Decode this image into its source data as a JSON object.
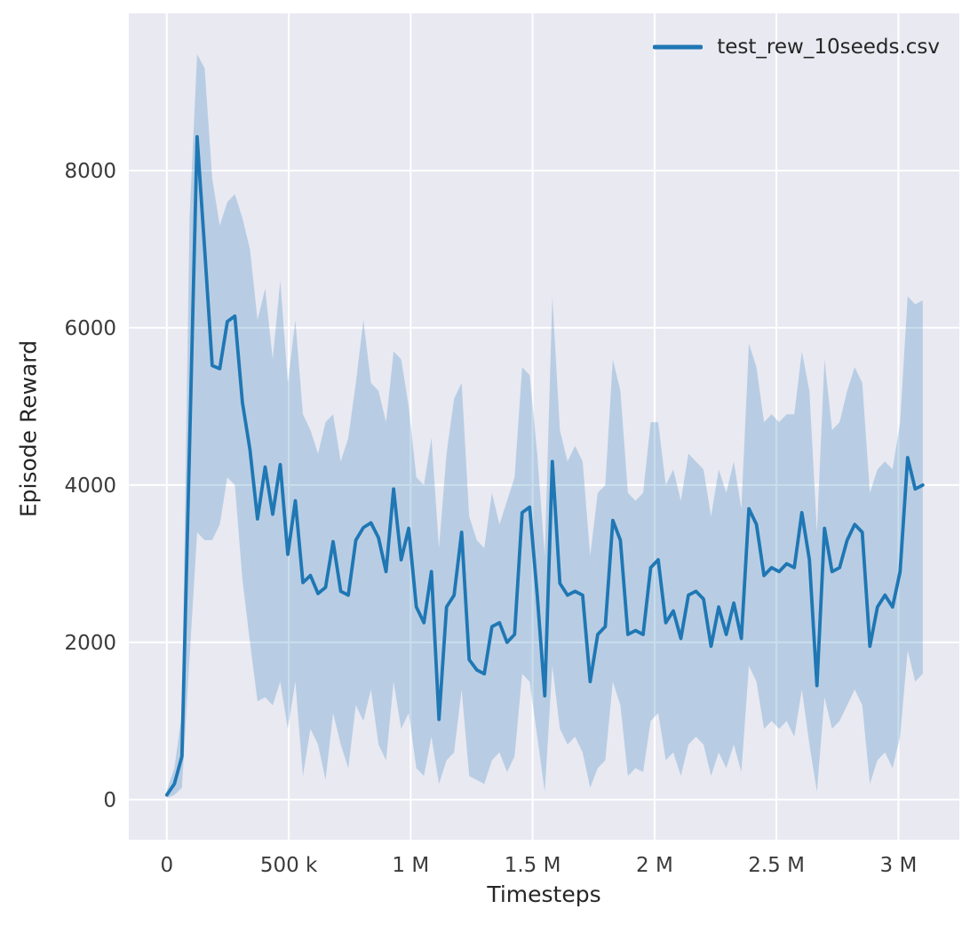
{
  "figure": {
    "background": "#ffffff",
    "plot_background": "#e9e9f2",
    "grid_color": "#ffffff",
    "tick_color": "#3b3b3b",
    "label_color": "#262626"
  },
  "legend": {
    "label": "test_rew_10seeds.csv",
    "line_color": "#1f77b4"
  },
  "chart_data": {
    "type": "line",
    "title": "",
    "xlabel": "Timesteps",
    "ylabel": "Episode Reward",
    "legend_position": "upper right",
    "grid": true,
    "series_name": "test_rew_10seeds.csv",
    "line_color": "#1f77b4",
    "band_color": "#1f77b4",
    "band_opacity": 0.24,
    "xlim": [
      -156000,
      3250000
    ],
    "ylim": [
      -510,
      10000
    ],
    "x_ticks": [
      0,
      500000,
      1000000,
      1500000,
      2000000,
      2500000,
      3000000
    ],
    "x_tick_labels": [
      "0",
      "500 k",
      "1 M",
      "1.5 M",
      "2 M",
      "2.5 M",
      "3 M"
    ],
    "y_ticks": [
      0,
      2000,
      4000,
      6000,
      8000
    ],
    "y_tick_labels": [
      "0",
      "2000",
      "4000",
      "6000",
      "8000"
    ],
    "x": [
      0,
      31000,
      62000,
      93000,
      124000,
      155000,
      186000,
      217000,
      248000,
      279000,
      310000,
      341000,
      372000,
      403000,
      434000,
      465000,
      496000,
      527000,
      558000,
      589000,
      620000,
      651000,
      682000,
      713000,
      744000,
      775000,
      806000,
      837000,
      868000,
      899000,
      930000,
      961000,
      992000,
      1023000,
      1054000,
      1085000,
      1116000,
      1147000,
      1178000,
      1209000,
      1240000,
      1271000,
      1302000,
      1333000,
      1364000,
      1395000,
      1426000,
      1457000,
      1488000,
      1519000,
      1550000,
      1581000,
      1612000,
      1643000,
      1674000,
      1705000,
      1736000,
      1767000,
      1798000,
      1829000,
      1860000,
      1891000,
      1922000,
      1953000,
      1984000,
      2015000,
      2046000,
      2077000,
      2108000,
      2139000,
      2170000,
      2201000,
      2232000,
      2263000,
      2294000,
      2325000,
      2356000,
      2387000,
      2418000,
      2449000,
      2480000,
      2511000,
      2542000,
      2573000,
      2604000,
      2635000,
      2666000,
      2697000,
      2728000,
      2759000,
      2790000,
      2821000,
      2852000,
      2883000,
      2914000,
      2945000,
      2976000,
      3007000,
      3038000,
      3069000,
      3100000
    ],
    "mean": [
      60,
      200,
      550,
      4500,
      8430,
      7000,
      5520,
      5480,
      6080,
      6150,
      5050,
      4450,
      3570,
      4230,
      3630,
      4260,
      3120,
      3800,
      2760,
      2850,
      2620,
      2700,
      3280,
      2650,
      2600,
      3300,
      3460,
      3520,
      3330,
      2900,
      3950,
      3050,
      3450,
      2450,
      2250,
      2900,
      1020,
      2450,
      2600,
      3400,
      1780,
      1650,
      1600,
      2200,
      2250,
      2000,
      2100,
      3650,
      3720,
      2600,
      1320,
      4300,
      2750,
      2600,
      2650,
      2600,
      1500,
      2100,
      2200,
      3550,
      3300,
      2100,
      2150,
      2100,
      2950,
      3050,
      2250,
      2400,
      2050,
      2600,
      2650,
      2550,
      1950,
      2450,
      2100,
      2500,
      2050,
      3700,
      3500,
      2850,
      2950,
      2900,
      3000,
      2950,
      3650,
      3050,
      1450,
      3450,
      2900,
      2950,
      3300,
      3500,
      3400,
      1950,
      2450,
      2600,
      2450,
      2900,
      4350,
      3950,
      4000
    ],
    "lower": [
      20,
      60,
      150,
      1800,
      3400,
      3300,
      3300,
      3500,
      4100,
      4000,
      2800,
      2000,
      1250,
      1300,
      1200,
      1500,
      900,
      1500,
      300,
      900,
      700,
      250,
      1100,
      700,
      400,
      1200,
      1000,
      1400,
      700,
      500,
      1500,
      900,
      1100,
      400,
      300,
      800,
      200,
      500,
      600,
      1400,
      300,
      250,
      200,
      500,
      600,
      350,
      550,
      1600,
      1500,
      800,
      100,
      1700,
      900,
      700,
      800,
      600,
      150,
      400,
      500,
      1500,
      1200,
      300,
      400,
      350,
      1000,
      1100,
      500,
      600,
      300,
      700,
      800,
      700,
      300,
      600,
      400,
      700,
      350,
      1700,
      1500,
      900,
      1000,
      900,
      1000,
      800,
      1400,
      700,
      100,
      1300,
      900,
      1000,
      1200,
      1400,
      1200,
      200,
      500,
      600,
      400,
      800,
      1900,
      1500,
      1600
    ],
    "upper": [
      120,
      400,
      1100,
      7400,
      9480,
      9300,
      7900,
      7300,
      7600,
      7700,
      7400,
      7000,
      6100,
      6500,
      5600,
      6600,
      5300,
      6100,
      4900,
      4700,
      4400,
      4800,
      4900,
      4300,
      4600,
      5300,
      6100,
      5300,
      5200,
      4800,
      5700,
      5600,
      5000,
      4100,
      4000,
      4600,
      3200,
      4400,
      5100,
      5300,
      3600,
      3300,
      3200,
      3900,
      3500,
      3800,
      4100,
      5500,
      5400,
      4400,
      3100,
      6400,
      4700,
      4300,
      4500,
      4300,
      3100,
      3900,
      4000,
      5600,
      5200,
      3900,
      3800,
      3900,
      4800,
      4800,
      4000,
      4200,
      3800,
      4400,
      4300,
      4200,
      3600,
      4200,
      3900,
      4300,
      3700,
      5800,
      5500,
      4800,
      4900,
      4800,
      4900,
      4900,
      5700,
      5200,
      3400,
      5600,
      4700,
      4800,
      5200,
      5500,
      5300,
      3900,
      4200,
      4300,
      4200,
      4800,
      6400,
      6300,
      6350
    ]
  }
}
